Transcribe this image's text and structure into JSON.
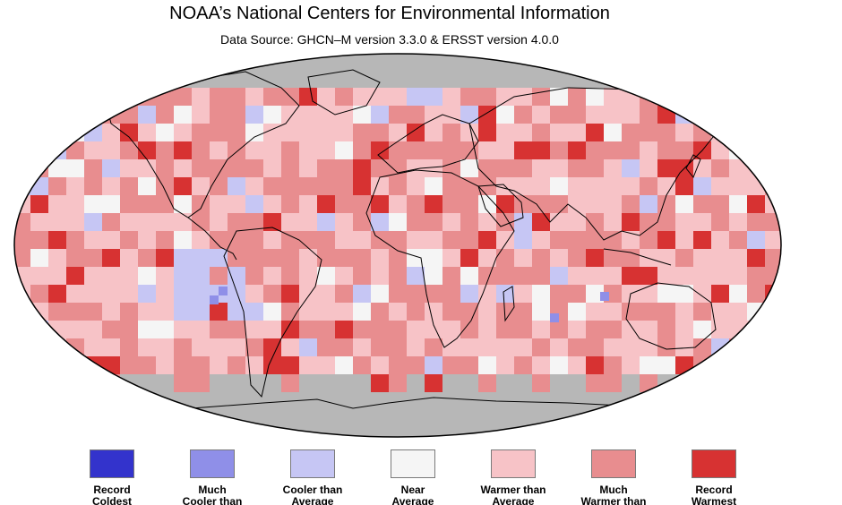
{
  "header": {
    "title": "NOAA’s National Centers for Environmental Information",
    "subtitle": "Data Source: GHCN–M version 3.3.0 & ERSST version 4.0.0"
  },
  "colors": {
    "record_coldest": "#3333cc",
    "much_cooler": "#8f8fe8",
    "cooler": "#c6c6f4",
    "near": "#f5f5f5",
    "warmer": "#f7c3c7",
    "much_warmer": "#e88d8f",
    "record_warmest": "#d73232",
    "no_data": "#b7b7b7",
    "coastline": "#000000"
  },
  "legend": [
    {
      "label": "Record\nColdest",
      "color_key": "record_coldest"
    },
    {
      "label": "Much\nCooler than\nAverage",
      "color_key": "much_cooler"
    },
    {
      "label": "Cooler than\nAverage",
      "color_key": "cooler"
    },
    {
      "label": "Near\nAverage",
      "color_key": "near"
    },
    {
      "label": "Warmer than\nAverage",
      "color_key": "warmer"
    },
    {
      "label": "Much\nWarmer than\nAverage",
      "color_key": "much_warmer"
    },
    {
      "label": "Record\nWarmest",
      "color_key": "record_warmest"
    }
  ]
}
